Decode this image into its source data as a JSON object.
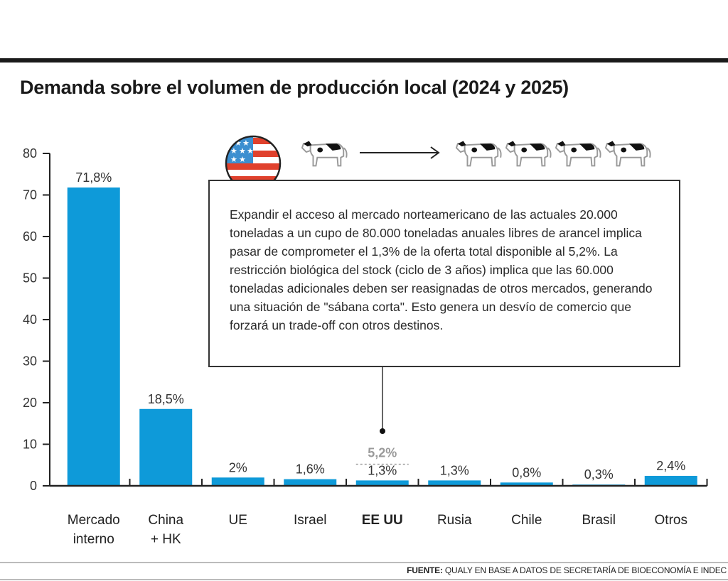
{
  "chart_data": {
    "type": "bar",
    "title": "Demanda sobre el volumen de producción local (2024 y 2025)",
    "categories": [
      [
        "Mercado",
        "interno"
      ],
      [
        "China",
        "+ HK"
      ],
      [
        "UE"
      ],
      [
        "Israel"
      ],
      [
        "EE UU"
      ],
      [
        "Rusia"
      ],
      [
        "Chile"
      ],
      [
        "Brasil"
      ],
      [
        "Otros"
      ]
    ],
    "values": [
      71.8,
      18.5,
      2,
      1.6,
      1.3,
      1.3,
      0.8,
      0.3,
      2.4
    ],
    "value_labels": [
      "71,8%",
      "18,5%",
      "2%",
      "1,6%",
      "1,3%",
      "1,3%",
      "0,8%",
      "0,3%",
      "2,4%"
    ],
    "highlight_category": "EE UU",
    "projected": {
      "category": "EE UU",
      "value": 5.2,
      "label": "5,2%"
    },
    "ylim": [
      0,
      80
    ],
    "yticks": [
      0,
      10,
      20,
      30,
      40,
      50,
      60,
      70,
      80
    ],
    "grid": false,
    "bar_color": "#0e9ad9",
    "projected_color": "#9a9a9a",
    "xlabel": "",
    "ylabel": ""
  },
  "annotation": {
    "text": "Expandir el acceso al mercado norteamericano de las actuales 20.000 toneladas a un cupo de 80.000 toneladas anuales libres de arancel implica pasar de comprometer el 1,3% de la oferta total disponible al 5,2%. La restricción biológica del stock (ciclo de 3 años) implica que las 60.000 toneladas adicionales deben ser reasignadas de otros mercados, generando una situación de \"sábana corta\". Esto genera un desvío de comercio que forzará un trade-off con otros destinos.",
    "icons": [
      "us-flag-icon",
      "cow-icon",
      "arrow-right-icon",
      "cow-icon",
      "cow-icon",
      "cow-icon",
      "cow-icon"
    ]
  },
  "source": {
    "label": "FUENTE:",
    "text": "QUALY EN BASE A DATOS DE SECRETARÍA DE BIOECONOMÍA E INDEC"
  }
}
